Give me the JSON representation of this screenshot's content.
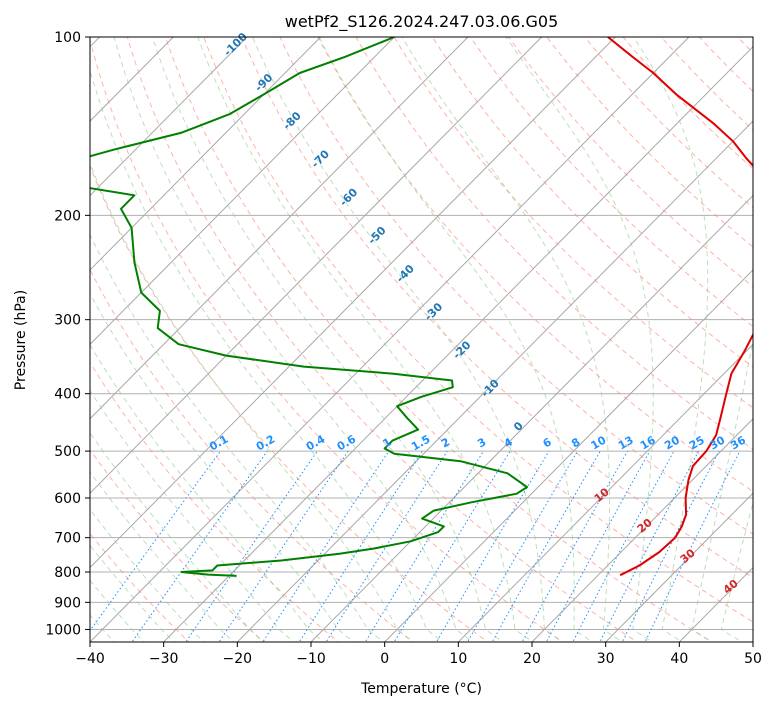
{
  "chart_data": {
    "type": "line",
    "title": "wetPf2_S126.2024.247.03.06.G05",
    "xlabel": "Temperature (°C)",
    "ylabel": "Pressure (hPa)",
    "xlim": [
      -40,
      50
    ],
    "ylim": [
      1050,
      100
    ],
    "y_scale": "log",
    "grid": true,
    "x_ticks": [
      -40,
      -30,
      -20,
      -10,
      0,
      10,
      20,
      30,
      40,
      50
    ],
    "y_ticks": [
      100,
      200,
      300,
      400,
      500,
      600,
      700,
      800,
      900,
      1000
    ],
    "isotherm_labels": [
      -100,
      -90,
      -80,
      -70,
      -60,
      -50,
      -40,
      -30,
      -20,
      -10,
      0
    ],
    "mixing_ratio_labels": [
      "0.1",
      "0.2",
      "0.4",
      "0.6",
      "1",
      "1.5",
      "2",
      "3",
      "4",
      "6",
      "8",
      "10",
      "13",
      "16",
      "20",
      "25",
      "30",
      "36"
    ],
    "adiabat_labels": [
      10,
      20,
      30,
      40
    ],
    "colors": {
      "temperature": "#e00000",
      "dewpoint": "#008000",
      "isotherm": "#1f77b4",
      "mixing_ratio": "#1e90ff",
      "dry_adiabat": "#fa8072",
      "moist_adiabat": "#90c990",
      "adiabat_label": "#d62728"
    },
    "series": [
      {
        "name": "",
        "values": [
          {
            "p": 810,
            "t": 23
          },
          {
            "p": 780,
            "t": 24.3
          },
          {
            "p": 740,
            "t": 25.2
          },
          {
            "p": 700,
            "t": 25.4
          },
          {
            "p": 670,
            "t": 24.8
          },
          {
            "p": 640,
            "t": 23.8
          },
          {
            "p": 600,
            "t": 21.5
          },
          {
            "p": 560,
            "t": 19.5
          },
          {
            "p": 530,
            "t": 18.2
          },
          {
            "p": 500,
            "t": 18
          },
          {
            "p": 470,
            "t": 17.2
          },
          {
            "p": 440,
            "t": 15.5
          },
          {
            "p": 400,
            "t": 13
          },
          {
            "p": 370,
            "t": 11
          },
          {
            "p": 340,
            "t": 9.8
          },
          {
            "p": 320,
            "t": 8.8
          },
          {
            "p": 290,
            "t": 7.2
          },
          {
            "p": 270,
            "t": 5.5
          },
          {
            "p": 250,
            "t": 3.5
          },
          {
            "p": 230,
            "t": 1.5
          },
          {
            "p": 210,
            "t": -0.8
          },
          {
            "p": 195,
            "t": -3
          },
          {
            "p": 185,
            "t": -7.2
          },
          {
            "p": 175,
            "t": -9
          },
          {
            "p": 170,
            "t": -12
          },
          {
            "p": 160,
            "t": -16
          },
          {
            "p": 150,
            "t": -20
          },
          {
            "p": 140,
            "t": -25
          },
          {
            "p": 125,
            "t": -34
          },
          {
            "p": 115,
            "t": -40
          },
          {
            "p": 108,
            "t": -45
          },
          {
            "p": 100,
            "t": -51
          }
        ]
      },
      {
        "name": "",
        "values": [
          {
            "p": 812,
            "t": -29
          },
          {
            "p": 808,
            "t": -33
          },
          {
            "p": 800,
            "t": -37
          },
          {
            "p": 795,
            "t": -33
          },
          {
            "p": 780,
            "t": -33
          },
          {
            "p": 765,
            "t": -25
          },
          {
            "p": 745,
            "t": -18
          },
          {
            "p": 730,
            "t": -14
          },
          {
            "p": 710,
            "t": -10
          },
          {
            "p": 685,
            "t": -7.5
          },
          {
            "p": 670,
            "t": -7.5
          },
          {
            "p": 650,
            "t": -11.5
          },
          {
            "p": 630,
            "t": -11
          },
          {
            "p": 610,
            "t": -7
          },
          {
            "p": 590,
            "t": -2
          },
          {
            "p": 575,
            "t": -1.5
          },
          {
            "p": 545,
            "t": -6
          },
          {
            "p": 520,
            "t": -14
          },
          {
            "p": 505,
            "t": -24
          },
          {
            "p": 495,
            "t": -26
          },
          {
            "p": 480,
            "t": -26
          },
          {
            "p": 460,
            "t": -24
          },
          {
            "p": 440,
            "t": -27
          },
          {
            "p": 420,
            "t": -30
          },
          {
            "p": 405,
            "t": -28
          },
          {
            "p": 390,
            "t": -25
          },
          {
            "p": 380,
            "t": -26
          },
          {
            "p": 370,
            "t": -35
          },
          {
            "p": 360,
            "t": -48
          },
          {
            "p": 345,
            "t": -60
          },
          {
            "p": 330,
            "t": -68
          },
          {
            "p": 310,
            "t": -73
          },
          {
            "p": 290,
            "t": -75
          },
          {
            "p": 270,
            "t": -80
          },
          {
            "p": 240,
            "t": -85
          },
          {
            "p": 210,
            "t": -90
          },
          {
            "p": 195,
            "t": -94
          },
          {
            "p": 185,
            "t": -94
          },
          {
            "p": 175,
            "t": -108
          },
          {
            "p": 168,
            "t": -110
          },
          {
            "p": 162,
            "t": -107
          },
          {
            "p": 155,
            "t": -103
          },
          {
            "p": 145,
            "t": -96
          },
          {
            "p": 135,
            "t": -92
          },
          {
            "p": 125,
            "t": -90
          },
          {
            "p": 115,
            "t": -88
          },
          {
            "p": 108,
            "t": -84
          },
          {
            "p": 100,
            "t": -80
          }
        ]
      }
    ]
  }
}
